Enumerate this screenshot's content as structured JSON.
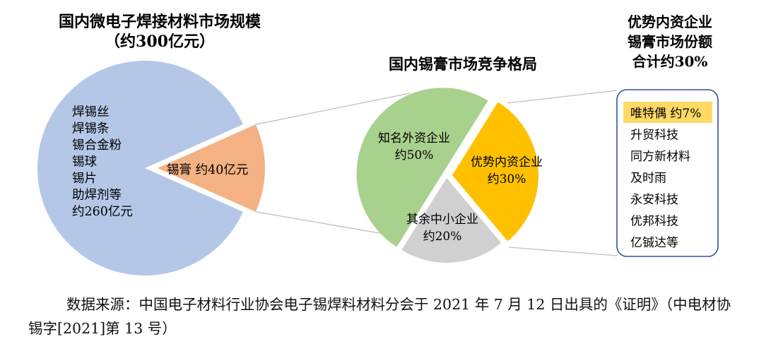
{
  "chart_data": [
    {
      "type": "pie",
      "title": "国内微电子焊接材料市场规模",
      "subtitle": "（约300亿元）",
      "total_label": "约300亿元",
      "slices": [
        {
          "label_lines": [
            "焊锡丝",
            "焊锡条",
            "锡合金粉",
            "锡球",
            "锡片",
            "助焊剂等",
            "约260亿元"
          ],
          "value": 260,
          "color": "#b4c7e7"
        },
        {
          "label": "锡膏 约40亿元",
          "value": 40,
          "color": "#f4b183"
        }
      ]
    },
    {
      "type": "pie",
      "title": "国内锡膏市场竞争格局",
      "slices": [
        {
          "label_lines": [
            "知名外资企业",
            "约50%"
          ],
          "value": 50,
          "color": "#a9d18e"
        },
        {
          "label_lines": [
            "优势内资企业",
            "约30%"
          ],
          "value": 30,
          "color": "#ffc000"
        },
        {
          "label_lines": [
            "其余中小企业",
            "约20%"
          ],
          "value": 20,
          "color": "#d0d0d0"
        }
      ]
    }
  ],
  "share_box": {
    "title_lines": [
      "优势内资企业",
      "锡膏市场份额",
      "合计约30%"
    ],
    "items": [
      "唯特偶 约7%",
      "升贸科技",
      "同方新材料",
      "及时雨",
      "永安科技",
      "优邦科技",
      "亿铖达等"
    ],
    "highlight_color": "#ffd966",
    "border_color": "#2f5597"
  },
  "source_note": "数据来源：中国电子材料行业协会电子锡焊料材料分会于 2021 年 7 月 12 日出具的《证明》（中电材协锡字[2021]第 13 号）"
}
